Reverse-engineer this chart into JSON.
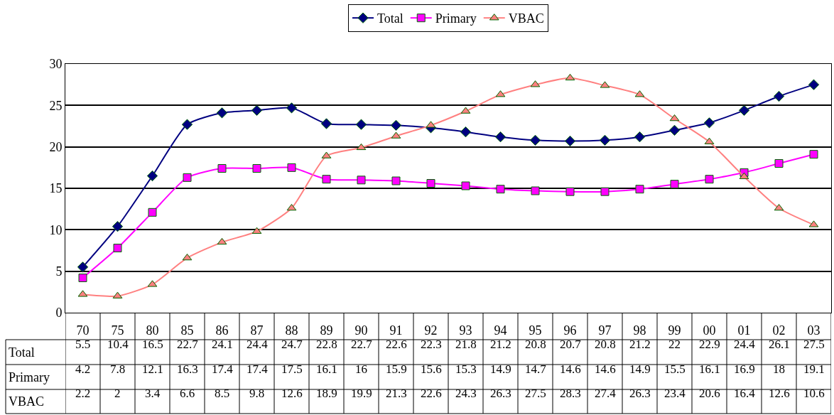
{
  "chart_data": {
    "type": "line",
    "categories": [
      "70",
      "75",
      "80",
      "85",
      "86",
      "87",
      "88",
      "89",
      "90",
      "91",
      "92",
      "93",
      "94",
      "95",
      "96",
      "97",
      "98",
      "99",
      "00",
      "01",
      "02",
      "03"
    ],
    "series": [
      {
        "name": "Total",
        "color": "#000080",
        "marker": "diamond",
        "values": [
          5.5,
          10.4,
          16.5,
          22.7,
          24.1,
          24.4,
          24.7,
          22.8,
          22.7,
          22.6,
          22.3,
          21.8,
          21.2,
          20.8,
          20.7,
          20.8,
          21.2,
          22,
          22.9,
          24.4,
          26.1,
          27.5
        ]
      },
      {
        "name": "Primary",
        "color": "#ff00ff",
        "marker": "square",
        "values": [
          4.2,
          7.8,
          12.1,
          16.3,
          17.4,
          17.4,
          17.5,
          16.1,
          16,
          15.9,
          15.6,
          15.3,
          14.9,
          14.7,
          14.6,
          14.6,
          14.9,
          15.5,
          16.1,
          16.9,
          18,
          19.1
        ]
      },
      {
        "name": "VBAC",
        "color": "#ff8080",
        "marker": "triangle",
        "values": [
          2.2,
          2,
          3.4,
          6.6,
          8.5,
          9.8,
          12.6,
          18.9,
          19.9,
          21.3,
          22.6,
          24.3,
          26.3,
          27.5,
          28.3,
          27.4,
          26.3,
          23.4,
          20.6,
          16.4,
          12.6,
          10.6
        ]
      }
    ],
    "ylim": [
      0,
      30
    ],
    "yticks": [
      0,
      5,
      10,
      15,
      20,
      25,
      30
    ],
    "grid": "y",
    "legend": "top",
    "data_labels": true
  }
}
